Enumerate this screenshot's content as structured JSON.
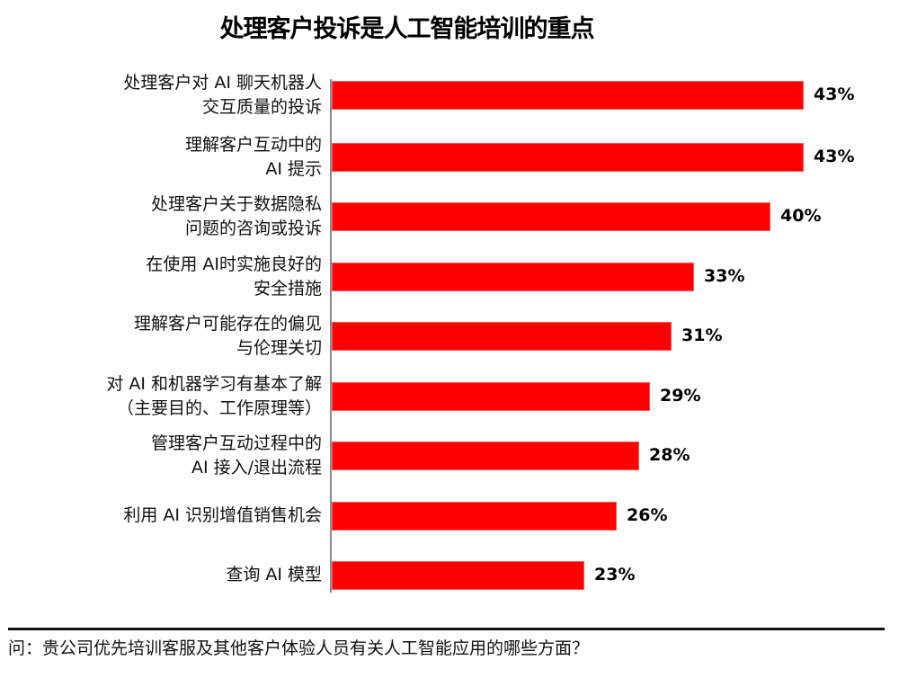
{
  "title": "处理客户投诉是人工智能培训的重点",
  "footer": {
    "question": "问：贵公司优先培训客服及其他客户体验人员有关人工智能应用的哪些方面？"
  },
  "bar_color": "#ff0000",
  "rows": [
    {
      "label_line1": "处理客户对 AI 聊天机器人",
      "label_line2": "交互质量的投诉",
      "value": 43,
      "display": "43%"
    },
    {
      "label_line1": "理解客户互动中的",
      "label_line2": "AI 提示",
      "value": 43,
      "display": "43%"
    },
    {
      "label_line1": "处理客户关于数据隐私",
      "label_line2": "问题的咨询或投诉",
      "value": 40,
      "display": "40%"
    },
    {
      "label_line1": "在使用 AI时实施良好的",
      "label_line2": "安全措施",
      "value": 33,
      "display": "33%"
    },
    {
      "label_line1": "理解客户可能存在的偏见",
      "label_line2": "与伦理关切",
      "value": 31,
      "display": "31%"
    },
    {
      "label_line1": "对 AI 和机器学习有基本了解",
      "label_line2": "（主要目的、工作原理等）",
      "value": 29,
      "display": "29%"
    },
    {
      "label_line1": "管理客户互动过程中的",
      "label_line2": "AI 接入/退出流程",
      "value": 28,
      "display": "28%"
    },
    {
      "label_line1": "利用 AI 识别增值销售机会",
      "label_line2": "",
      "value": 26,
      "display": "26%"
    },
    {
      "label_line1": "查询 AI 模型",
      "label_line2": "",
      "value": 23,
      "display": "23%"
    }
  ],
  "chart_data": {
    "type": "bar",
    "orientation": "horizontal",
    "title": "处理客户投诉是人工智能培训的重点",
    "categories": [
      "处理客户对 AI 聊天机器人交互质量的投诉",
      "理解客户互动中的 AI 提示",
      "处理客户关于数据隐私问题的咨询或投诉",
      "在使用 AI时实施良好的安全措施",
      "理解客户可能存在的偏见与伦理关切",
      "对 AI 和机器学习有基本了解（主要目的、工作原理等）",
      "管理客户互动过程中的 AI 接入/退出流程",
      "利用 AI 识别增值销售机会",
      "查询 AI 模型"
    ],
    "values": [
      43,
      43,
      40,
      33,
      31,
      29,
      28,
      26,
      23
    ],
    "unit": "%",
    "xlabel": "",
    "ylabel": "",
    "grid": false,
    "legend": null,
    "data_labels": [
      "43%",
      "43%",
      "40%",
      "33%",
      "31%",
      "29%",
      "28%",
      "26%",
      "23%"
    ],
    "color": "#ff0000",
    "footnote": "问：贵公司优先培训客服及其他客户体验人员有关人工智能应用的哪些方面？"
  }
}
